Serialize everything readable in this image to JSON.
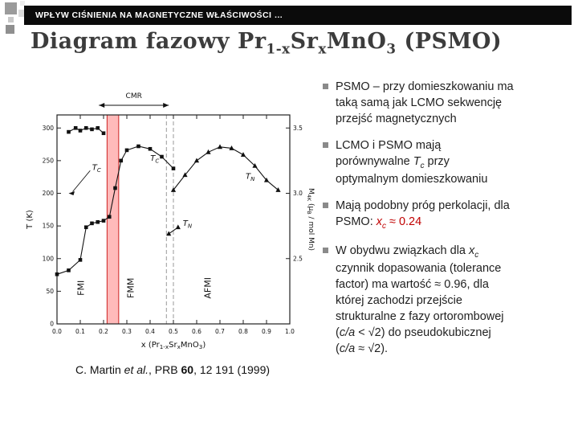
{
  "slide": {
    "header": {
      "text": "WPŁYW CIŚNIENIA NA MAGNETYCZNE WŁAŚCIWOŚCI …"
    },
    "title_runs": [
      {
        "t": "Diagram fazowy Pr"
      },
      {
        "t": "1-x",
        "cls": "sub"
      },
      {
        "t": "Sr",
        "cls": ""
      },
      {
        "t": "x",
        "cls": "sub"
      },
      {
        "t": "MnO"
      },
      {
        "t": "3",
        "cls": "sub"
      },
      {
        "t": " (PSMO)"
      }
    ],
    "citation_runs": [
      {
        "t": "C. Martin "
      },
      {
        "t": "et al.",
        "cls": "it"
      },
      {
        "t": ", PRB "
      },
      {
        "t": "60",
        "cls": "b"
      },
      {
        "t": ", 12 191 (1999)"
      }
    ],
    "bullets": [
      [
        {
          "t": "PSMO – przy domieszkowaniu ma"
        },
        {
          "br": true
        },
        {
          "t": "taką samą jak LCMO sekwencję"
        },
        {
          "br": true
        },
        {
          "t": "przejść magnetycznych"
        }
      ],
      [
        {
          "t": "LCMO i PSMO mają"
        },
        {
          "br": true
        },
        {
          "t": "porównywalne "
        },
        {
          "t": "T",
          "cls": "it"
        },
        {
          "t": "c",
          "cls": "it sub"
        },
        {
          "t": " przy"
        },
        {
          "br": true
        },
        {
          "t": "optymalnym domieszkowaniu"
        }
      ],
      [
        {
          "t": "Mają podobny próg perkolacji, dla"
        },
        {
          "br": true
        },
        {
          "t": "PSMO: "
        },
        {
          "t": "x",
          "cls": "red it"
        },
        {
          "t": "c",
          "cls": "red it sub"
        },
        {
          "t": " ≈ 0.24",
          "cls": "red"
        }
      ],
      [
        {
          "t": "W obydwu związkach dla "
        },
        {
          "t": "x",
          "cls": "it"
        },
        {
          "t": "c",
          "cls": "it sub"
        },
        {
          "br": true
        },
        {
          "t": "czynnik dopasowania (tolerance"
        },
        {
          "br": true
        },
        {
          "t": "factor) ma wartość ≈ 0.96, dla"
        },
        {
          "br": true
        },
        {
          "t": "której zachodzi przejście"
        },
        {
          "br": true
        },
        {
          "t": "strukturalne z fazy ortorombowej"
        },
        {
          "br": true
        },
        {
          "t": "("
        },
        {
          "t": "c/a",
          "cls": "it"
        },
        {
          "t": " < √2) do pseudokubicznej"
        },
        {
          "br": true
        },
        {
          "t": "("
        },
        {
          "t": "c/a",
          "cls": "it"
        },
        {
          "t": " ≈ √2)."
        }
      ]
    ]
  },
  "chart_data": {
    "type": "scatter",
    "title": "",
    "xlabel_runs": [
      {
        "t": "x (Pr"
      },
      {
        "t": "1-x",
        "sub": true
      },
      {
        "t": "Sr"
      },
      {
        "t": "x",
        "sub": true
      },
      {
        "t": "MnO"
      },
      {
        "t": "3",
        "sub": true
      },
      {
        "t": ")"
      }
    ],
    "ylabel_left": "T (K)",
    "ylabel_right_runs": [
      {
        "t": "M"
      },
      {
        "t": "4K",
        "sub": true
      },
      {
        "t": " (μ"
      },
      {
        "t": "B",
        "sub": true
      },
      {
        "t": " / mol Mn)"
      }
    ],
    "xlim": [
      0.0,
      1.0
    ],
    "x_ticks": [
      0.0,
      0.1,
      0.2,
      0.3,
      0.4,
      0.5,
      0.6,
      0.7,
      0.8,
      0.9,
      1.0
    ],
    "ylim_left": [
      0,
      320
    ],
    "y_ticks_left": [
      0,
      50,
      100,
      150,
      200,
      250,
      300
    ],
    "y_ticks_right": [
      2.5,
      3.0,
      3.5
    ],
    "right_axis_map": {
      "m_offset": 2.0,
      "m_to_T_scale": 200
    },
    "critical_band_x": [
      0.215,
      0.265
    ],
    "dashed_lines_x": [
      0.47,
      0.5
    ],
    "cmr_arrow": {
      "x0": 0.18,
      "x1": 0.48,
      "label": "CMR"
    },
    "regions": [
      {
        "label": "FMI",
        "x": 0.115,
        "T": 55
      },
      {
        "label": "FMM",
        "x": 0.33,
        "T": 55
      },
      {
        "label": "AFMI",
        "x": 0.66,
        "T": 55
      }
    ],
    "annotations": [
      {
        "main": "T",
        "sub": "C",
        "x": 0.17,
        "T": 236,
        "arrow": {
          "x": 0.05,
          "T": 200
        }
      },
      {
        "main": "T",
        "sub": "C",
        "x": 0.42,
        "T": 250
      },
      {
        "main": "T",
        "sub": "N",
        "x": 0.56,
        "T": 150
      },
      {
        "main": "T",
        "sub": "N",
        "x": 0.83,
        "T": 222
      }
    ],
    "series": [
      {
        "name": "Tc-FM",
        "marker": "square",
        "axis": "left",
        "x": [
          0.0,
          0.05,
          0.1,
          0.125,
          0.15,
          0.175,
          0.2,
          0.225,
          0.25,
          0.275,
          0.3,
          0.35,
          0.4,
          0.45,
          0.5
        ],
        "y": [
          76,
          82,
          98,
          148,
          154,
          156,
          158,
          164,
          208,
          250,
          266,
          272,
          268,
          256,
          238
        ]
      },
      {
        "name": "TN-AFM",
        "marker": "triangle",
        "axis": "left",
        "x": [
          0.5,
          0.55,
          0.6,
          0.65,
          0.7,
          0.75,
          0.8,
          0.85,
          0.9,
          0.95
        ],
        "y": [
          205,
          228,
          250,
          263,
          271,
          269,
          259,
          242,
          220,
          205
        ]
      },
      {
        "name": "TN-low",
        "marker": "triangle",
        "axis": "left",
        "x": [
          0.48,
          0.52
        ],
        "y": [
          138,
          148
        ]
      },
      {
        "name": "M4K",
        "marker": "square",
        "axis": "right",
        "x": [
          0.05,
          0.08,
          0.1,
          0.125,
          0.15,
          0.175,
          0.2
        ],
        "y": [
          3.47,
          3.5,
          3.48,
          3.5,
          3.49,
          3.5,
          3.46
        ]
      }
    ]
  }
}
